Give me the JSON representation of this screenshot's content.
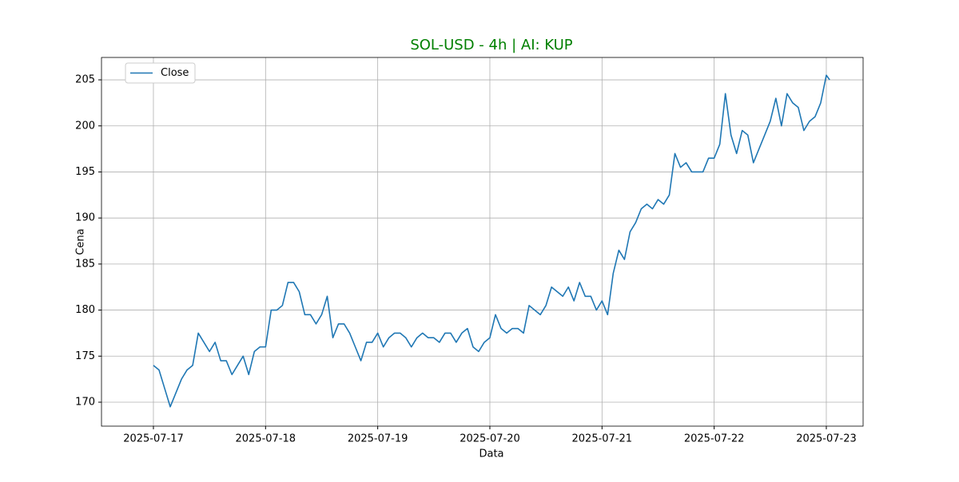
{
  "chart_data": {
    "type": "line",
    "title": "SOL-USD - 4h | AI: KUP",
    "title_color": "#008000",
    "x_label": "Data",
    "y_label": "Cena",
    "x": [
      0,
      0.05,
      0.1,
      0.15,
      0.2,
      0.25,
      0.3,
      0.35,
      0.4,
      0.45,
      0.5,
      0.55,
      0.6,
      0.65,
      0.7,
      0.75,
      0.8,
      0.85,
      0.9,
      0.95,
      1,
      1.05,
      1.1,
      1.15,
      1.2,
      1.25,
      1.3,
      1.35,
      1.4,
      1.45,
      1.5,
      1.55,
      1.6,
      1.65,
      1.7,
      1.75,
      1.8,
      1.85,
      1.9,
      1.95,
      2,
      2.05,
      2.1,
      2.15,
      2.2,
      2.25,
      2.3,
      2.35,
      2.4,
      2.45,
      2.5,
      2.55,
      2.6,
      2.65,
      2.7,
      2.75,
      2.8,
      2.85,
      2.9,
      2.95,
      3,
      3.05,
      3.1,
      3.15,
      3.2,
      3.25,
      3.3,
      3.35,
      3.4,
      3.45,
      3.5,
      3.55,
      3.6,
      3.65,
      3.7,
      3.75,
      3.8,
      3.85,
      3.9,
      3.95,
      4,
      4.05,
      4.1,
      4.15,
      4.2,
      4.25,
      4.3,
      4.35,
      4.4,
      4.45,
      4.5,
      4.55,
      4.6,
      4.65,
      4.7,
      4.75,
      4.8,
      4.85,
      4.9,
      4.95,
      5,
      5.05,
      5.1,
      5.15,
      5.2,
      5.25,
      5.3,
      5.35,
      5.4,
      5.45,
      5.5,
      5.55,
      5.6,
      5.65,
      5.7,
      5.75,
      5.8,
      5.85,
      5.9,
      5.95,
      6,
      6.03
    ],
    "series": [
      {
        "name": "Close",
        "color": "#1f77b4",
        "values": [
          174,
          173.5,
          171.5,
          169.5,
          171,
          172.5,
          173.5,
          174,
          177.5,
          176.5,
          175.5,
          176.5,
          174.5,
          174.5,
          173,
          174,
          175,
          173,
          175.5,
          176,
          176,
          180,
          180,
          180.5,
          183,
          183,
          182,
          179.5,
          179.5,
          178.5,
          179.5,
          181.5,
          177,
          178.5,
          178.5,
          177.5,
          176,
          174.5,
          176.5,
          176.5,
          177.5,
          176,
          177,
          177.5,
          177.5,
          177,
          176,
          177,
          177.5,
          177,
          177,
          176.5,
          177.5,
          177.5,
          176.5,
          177.5,
          178,
          176,
          175.5,
          176.5,
          177,
          179.5,
          178,
          177.5,
          178,
          178,
          177.5,
          180.5,
          180,
          179.5,
          180.5,
          182.5,
          182,
          181.5,
          182.5,
          181,
          183,
          181.5,
          181.5,
          180,
          181,
          179.5,
          184,
          186.5,
          185.5,
          188.5,
          189.5,
          191,
          191.5,
          191,
          192,
          191.5,
          192.5,
          197,
          195.5,
          196,
          195,
          195,
          195,
          196.5,
          196.5,
          198,
          203.5,
          199,
          197,
          199.5,
          199,
          196,
          197.5,
          199,
          200.5,
          203,
          200,
          203.5,
          202.5,
          202,
          199.5,
          200.5,
          201,
          202.5,
          205.5,
          205
        ]
      }
    ],
    "xlim": [
      -0.463,
      6.328
    ],
    "xticks": [
      {
        "value": 0,
        "label": "2025-07-17"
      },
      {
        "value": 1,
        "label": "2025-07-18"
      },
      {
        "value": 2,
        "label": "2025-07-19"
      },
      {
        "value": 3,
        "label": "2025-07-20"
      },
      {
        "value": 4,
        "label": "2025-07-21"
      },
      {
        "value": 5,
        "label": "2025-07-22"
      },
      {
        "value": 6,
        "label": "2025-07-23"
      }
    ],
    "ylim": [
      167.4,
      207.43
    ],
    "yticks": [
      170,
      175,
      180,
      185,
      190,
      195,
      200,
      205
    ],
    "grid": true,
    "legend": "upper-left"
  }
}
